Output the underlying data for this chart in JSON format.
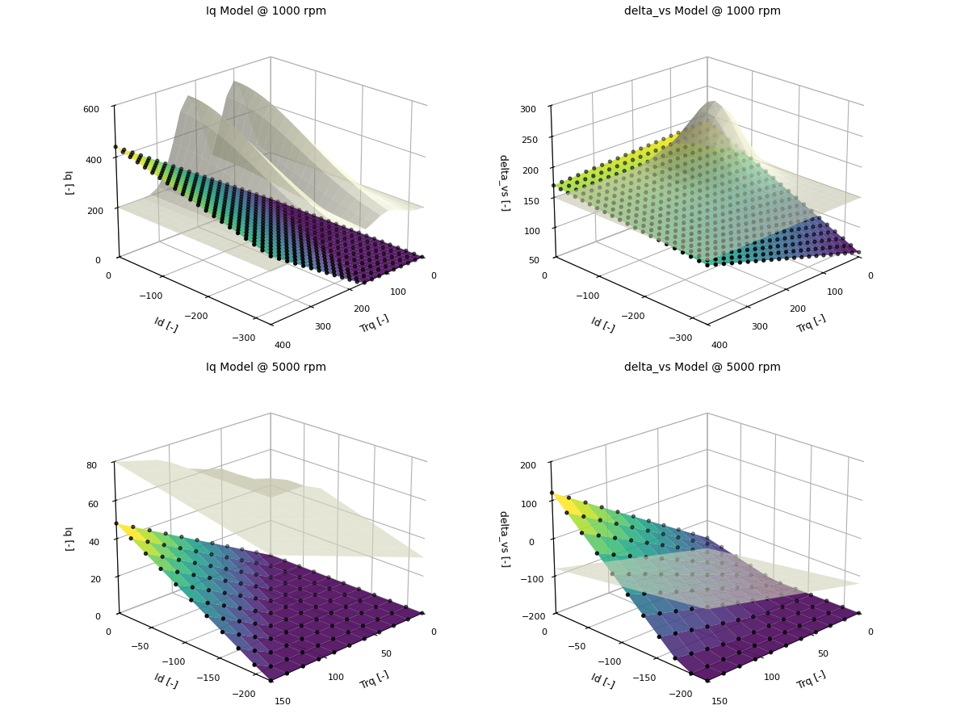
{
  "fig_width": 12.0,
  "fig_height": 8.89,
  "fig_dpi": 100,
  "subplots": [
    {
      "title": "Iq Model @ 1000 rpm",
      "xlabel": "Trq [-]",
      "ylabel": "Id [-]",
      "zlabel": "Iq [-]",
      "trq_min": 0,
      "trq_max": 400,
      "trq_n": 21,
      "id_min": -330,
      "id_max": 0,
      "id_n": 21,
      "type": "iq_1000",
      "zlim": [
        0,
        600
      ],
      "zticks": [
        0,
        200,
        400,
        600
      ],
      "trq_ticks": [
        0,
        100,
        200,
        300,
        400
      ],
      "id_ticks": [
        -300,
        -200,
        -100,
        0
      ],
      "elev": 22,
      "azim": 225
    },
    {
      "title": "delta_vs Model @ 1000 rpm",
      "xlabel": "Trq [-]",
      "ylabel": "Id [-]",
      "zlabel": "delta_vs [-]",
      "trq_min": 0,
      "trq_max": 400,
      "trq_n": 21,
      "id_min": -330,
      "id_max": 0,
      "id_n": 21,
      "type": "dvs_1000",
      "zlim": [
        50,
        300
      ],
      "zticks": [
        50,
        100,
        150,
        200,
        250,
        300
      ],
      "trq_ticks": [
        0,
        100,
        200,
        300,
        400
      ],
      "id_ticks": [
        -300,
        -200,
        -100,
        0
      ],
      "elev": 22,
      "azim": 225
    },
    {
      "title": "Iq Model @ 5000 rpm",
      "xlabel": "Trq [-]",
      "ylabel": "Id [-]",
      "zlabel": "Iq [-]",
      "trq_min": 0,
      "trq_max": 150,
      "trq_n": 11,
      "id_min": -220,
      "id_max": 0,
      "id_n": 11,
      "type": "iq_5000",
      "zlim": [
        0,
        80
      ],
      "zticks": [
        0,
        20,
        40,
        60,
        80
      ],
      "trq_ticks": [
        0,
        50,
        100,
        150
      ],
      "id_ticks": [
        -200,
        -150,
        -100,
        -50,
        0
      ],
      "elev": 22,
      "azim": 225
    },
    {
      "title": "delta_vs Model @ 5000 rpm",
      "xlabel": "Trq [-]",
      "ylabel": "Id [-]",
      "zlabel": "delta_vs [-]",
      "trq_min": 0,
      "trq_max": 150,
      "trq_n": 11,
      "id_min": -220,
      "id_max": 0,
      "id_n": 11,
      "type": "dvs_5000",
      "zlim": [
        -200,
        200
      ],
      "zticks": [
        -200,
        -100,
        0,
        100,
        200
      ],
      "trq_ticks": [
        0,
        50,
        100,
        150
      ],
      "id_ticks": [
        -200,
        -150,
        -100,
        -50,
        0
      ],
      "elev": 22,
      "azim": 225
    }
  ],
  "background_color": "#ffffff",
  "surface_cmap": "viridis",
  "scatter_color": "black",
  "scatter_size": 8,
  "surface_alpha": 0.88
}
